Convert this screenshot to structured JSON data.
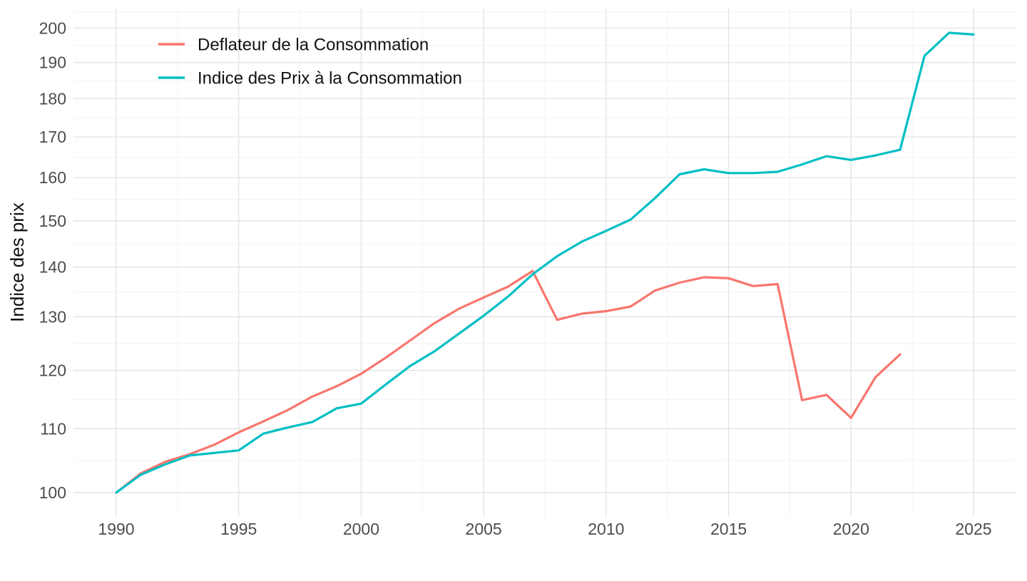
{
  "chart_data": {
    "type": "line",
    "title": "",
    "xlabel": "",
    "ylabel": "Indice des prix",
    "y_scale": "log",
    "grid": "major+minor",
    "legend_position": "top-left-inside",
    "x_ticks": [
      1990,
      1995,
      2000,
      2005,
      2010,
      2015,
      2020,
      2025
    ],
    "y_ticks": [
      100,
      110,
      120,
      130,
      140,
      150,
      160,
      170,
      180,
      190,
      200
    ],
    "xlim": [
      1988.25,
      2026.75
    ],
    "ylim": [
      96.6,
      205.8
    ],
    "series": [
      {
        "name": "Deflateur de la Consommation",
        "color": "#F8766D",
        "years": [
          1990,
          1991,
          1992,
          1993,
          1994,
          1995,
          1996,
          1997,
          1998,
          1999,
          2000,
          2001,
          2002,
          2003,
          2004,
          2005,
          2006,
          2007,
          2008,
          2009,
          2010,
          2011,
          2012,
          2013,
          2014,
          2015,
          2016,
          2017,
          2018,
          2019,
          2020,
          2021,
          2022
        ],
        "values": [
          100,
          102.9,
          104.7,
          105.9,
          107.4,
          109.4,
          111.2,
          113.1,
          115.4,
          117.2,
          119.4,
          122.3,
          125.5,
          128.8,
          131.6,
          133.8,
          136.0,
          139.2,
          129.4,
          130.6,
          131.1,
          132.0,
          135.2,
          136.8,
          137.9,
          137.7,
          136.1,
          136.5,
          114.8,
          115.7,
          111.8,
          118.8,
          122.9
        ]
      },
      {
        "name": "Indice des Prix à la Consommation",
        "color": "#00BFC4",
        "years": [
          1990,
          1991,
          1992,
          1993,
          1994,
          1995,
          1996,
          1997,
          1998,
          1999,
          2000,
          2001,
          2002,
          2003,
          2004,
          2005,
          2006,
          2007,
          2008,
          2009,
          2010,
          2011,
          2012,
          2013,
          2014,
          2015,
          2016,
          2017,
          2018,
          2019,
          2020,
          2021,
          2022,
          2023,
          2024,
          2025
        ],
        "values": [
          100,
          102.7,
          104.3,
          105.7,
          106.1,
          106.5,
          109.2,
          110.2,
          111.1,
          113.4,
          114.2,
          117.5,
          120.8,
          123.5,
          126.8,
          130.2,
          134.0,
          138.5,
          142.3,
          145.4,
          147.8,
          150.3,
          155.2,
          160.8,
          162.0,
          161.1,
          161.1,
          161.4,
          163.2,
          165.2,
          164.3,
          165.4,
          166.8,
          191.9,
          198.6,
          198.1
        ]
      }
    ]
  },
  "style": {
    "background": "#FFFFFF",
    "grid_major_color": "#E4E4E4",
    "grid_minor_color": "#F1F1F1",
    "axis_text_color": "#4D4D4D",
    "text_color": "#111111"
  }
}
